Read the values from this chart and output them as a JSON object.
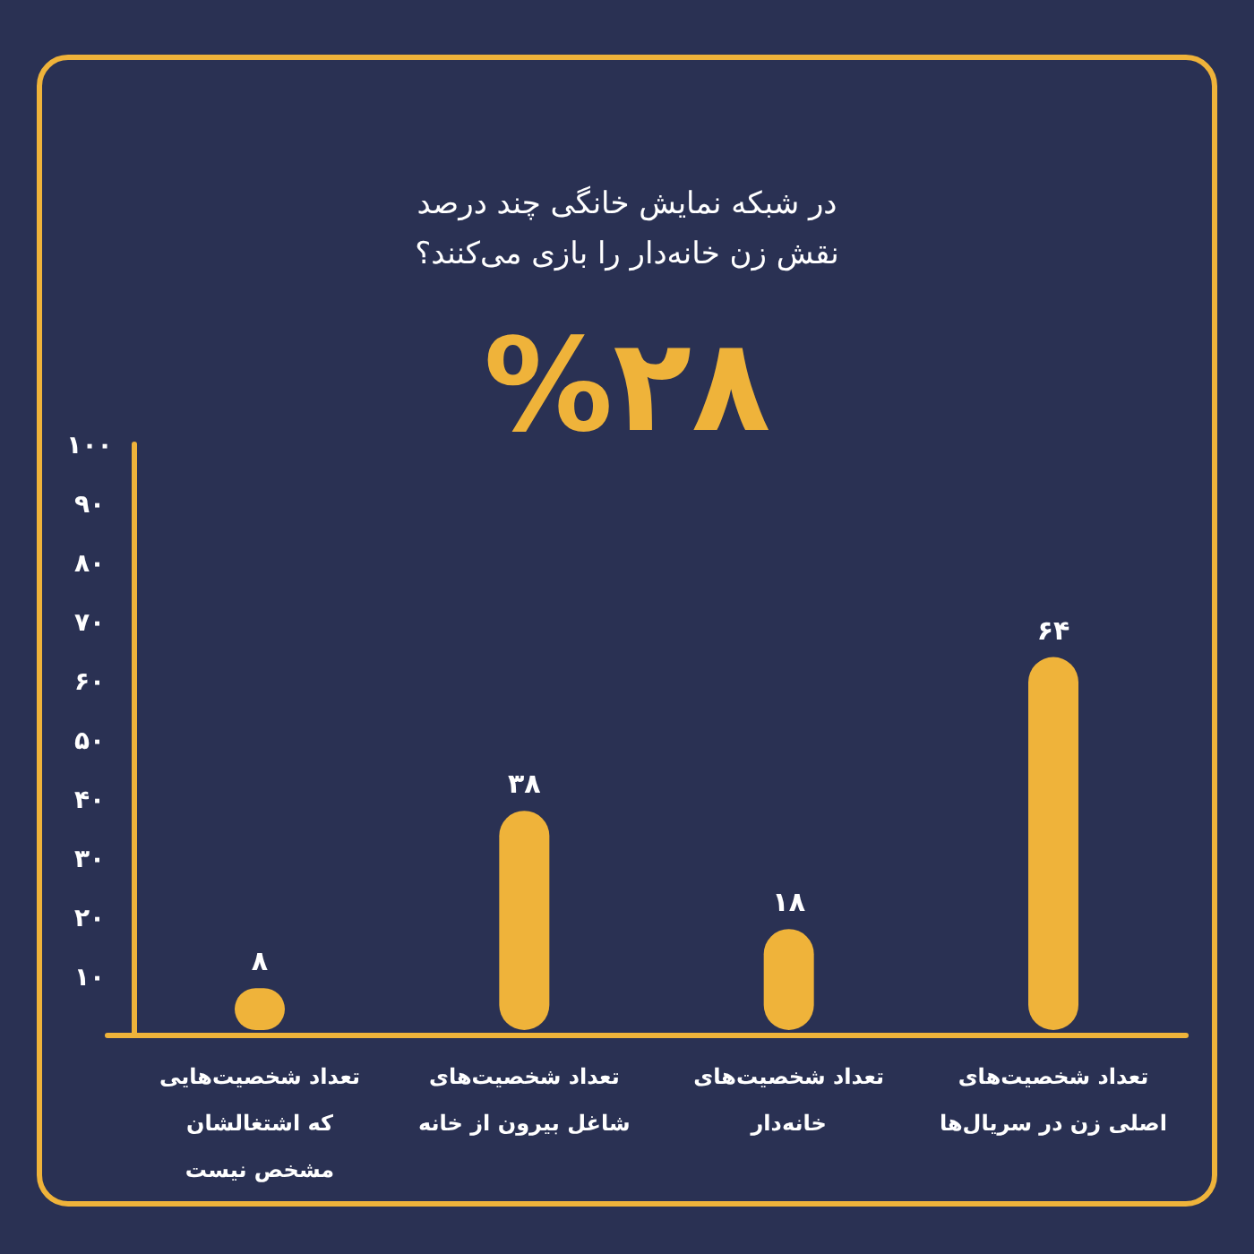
{
  "chart_data": {
    "type": "bar",
    "title": "در شبکه نمایش خانگی چند درصد نقش زن خانه‌دار را بازی می‌کنند؟",
    "subtitle": "%۲۸",
    "categories": [
      "تعداد شخصیت‌هایی که اشتغالشان مشخص نیست",
      "تعداد شخصیت‌های شاغل بیرون از خانه",
      "تعداد شخصیت‌های خانه‌دار",
      "تعداد شخصیت‌های اصلی زن در سریال‌ها"
    ],
    "values": [
      8,
      38,
      18,
      64
    ],
    "value_labels": [
      "۸",
      "۳۸",
      "۱۸",
      "۶۴"
    ],
    "color": "#efb33a",
    "ylim": [
      0,
      100
    ],
    "yticks": [
      {
        "value": 10,
        "label": "۱۰"
      },
      {
        "value": 20,
        "label": "۲۰"
      },
      {
        "value": 30,
        "label": "۳۰"
      },
      {
        "value": 40,
        "label": "۴۰"
      },
      {
        "value": 50,
        "label": "۵۰"
      },
      {
        "value": 60,
        "label": "۶۰"
      },
      {
        "value": 70,
        "label": "۷۰"
      },
      {
        "value": 80,
        "label": "۸۰"
      },
      {
        "value": 90,
        "label": "۹۰"
      },
      {
        "value": 100,
        "label": "۱۰۰"
      }
    ]
  }
}
